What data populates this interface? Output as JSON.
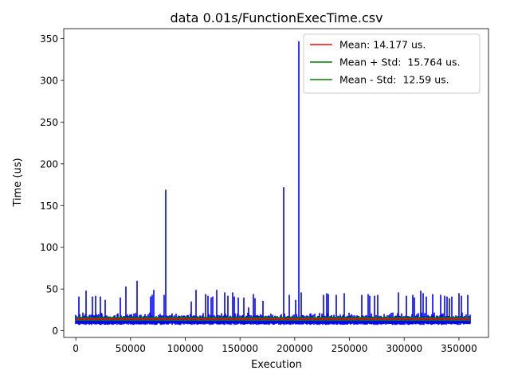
{
  "chart_data": {
    "type": "line",
    "title": "data 0.01s/FunctionExecTime.csv",
    "xlabel": "Execution",
    "ylabel": "Time (us)",
    "xlim": [
      -11000,
      377000
    ],
    "ylim": [
      -8,
      362
    ],
    "x_ticks": [
      0,
      50000,
      100000,
      150000,
      200000,
      250000,
      300000,
      350000
    ],
    "x_tick_labels": [
      "0",
      "50000",
      "100000",
      "150000",
      "200000",
      "250000",
      "300000",
      "350000"
    ],
    "y_ticks": [
      0,
      50,
      100,
      150,
      200,
      250,
      300,
      350
    ],
    "y_tick_labels": [
      "0",
      "50",
      "100",
      "150",
      "200",
      "250",
      "300",
      "350"
    ],
    "grid": false,
    "legend_position": "upper right",
    "n_points": 360000,
    "series": [
      {
        "name": "",
        "color": "#0000ff",
        "baseline": {
          "low": 9,
          "high": 17
        },
        "spikes": [
          {
            "x": 3000,
            "y": 41
          },
          {
            "x": 9500,
            "y": 48
          },
          {
            "x": 15000,
            "y": 41
          },
          {
            "x": 18000,
            "y": 42
          },
          {
            "x": 22500,
            "y": 41
          },
          {
            "x": 27000,
            "y": 37
          },
          {
            "x": 41000,
            "y": 40
          },
          {
            "x": 46000,
            "y": 53
          },
          {
            "x": 56000,
            "y": 60
          },
          {
            "x": 68000,
            "y": 41
          },
          {
            "x": 69500,
            "y": 43
          },
          {
            "x": 71000,
            "y": 49
          },
          {
            "x": 81000,
            "y": 43
          },
          {
            "x": 82200,
            "y": 169
          },
          {
            "x": 105500,
            "y": 35
          },
          {
            "x": 109500,
            "y": 49
          },
          {
            "x": 118500,
            "y": 44
          },
          {
            "x": 121000,
            "y": 42
          },
          {
            "x": 123500,
            "y": 40
          },
          {
            "x": 124800,
            "y": 41
          },
          {
            "x": 129000,
            "y": 49
          },
          {
            "x": 136000,
            "y": 46
          },
          {
            "x": 139000,
            "y": 42
          },
          {
            "x": 143000,
            "y": 46
          },
          {
            "x": 145000,
            "y": 41
          },
          {
            "x": 148500,
            "y": 40
          },
          {
            "x": 153500,
            "y": 40
          },
          {
            "x": 158000,
            "y": 28
          },
          {
            "x": 162000,
            "y": 44
          },
          {
            "x": 164000,
            "y": 39
          },
          {
            "x": 171000,
            "y": 36
          },
          {
            "x": 190000,
            "y": 172
          },
          {
            "x": 195000,
            "y": 43
          },
          {
            "x": 201000,
            "y": 37
          },
          {
            "x": 203500,
            "y": 347
          },
          {
            "x": 206000,
            "y": 46
          },
          {
            "x": 226000,
            "y": 43
          },
          {
            "x": 229000,
            "y": 45
          },
          {
            "x": 231000,
            "y": 44
          },
          {
            "x": 238000,
            "y": 43
          },
          {
            "x": 245000,
            "y": 45
          },
          {
            "x": 261000,
            "y": 43
          },
          {
            "x": 267000,
            "y": 44
          },
          {
            "x": 268500,
            "y": 42
          },
          {
            "x": 273000,
            "y": 42
          },
          {
            "x": 276000,
            "y": 43
          },
          {
            "x": 295000,
            "y": 46
          },
          {
            "x": 302000,
            "y": 42
          },
          {
            "x": 308000,
            "y": 43
          },
          {
            "x": 309500,
            "y": 40
          },
          {
            "x": 315000,
            "y": 48
          },
          {
            "x": 317000,
            "y": 45
          },
          {
            "x": 320000,
            "y": 41
          },
          {
            "x": 326000,
            "y": 44
          },
          {
            "x": 333000,
            "y": 43
          },
          {
            "x": 337000,
            "y": 42
          },
          {
            "x": 339000,
            "y": 41
          },
          {
            "x": 341500,
            "y": 39
          },
          {
            "x": 343500,
            "y": 41
          },
          {
            "x": 350000,
            "y": 45
          },
          {
            "x": 352000,
            "y": 42
          },
          {
            "x": 358000,
            "y": 43
          }
        ]
      },
      {
        "name": "Mean: 14.177 us.",
        "color": "#ff0000",
        "y": 14.177,
        "x_range": [
          0,
          360000
        ]
      },
      {
        "name": "Mean + Std:  15.764 us.",
        "color": "#008000",
        "y": 15.764,
        "x_range": [
          0,
          360000
        ]
      },
      {
        "name": "Mean - Std:  12.59 us.",
        "color": "#008000",
        "y": 12.59,
        "x_range": [
          0,
          360000
        ]
      }
    ]
  }
}
